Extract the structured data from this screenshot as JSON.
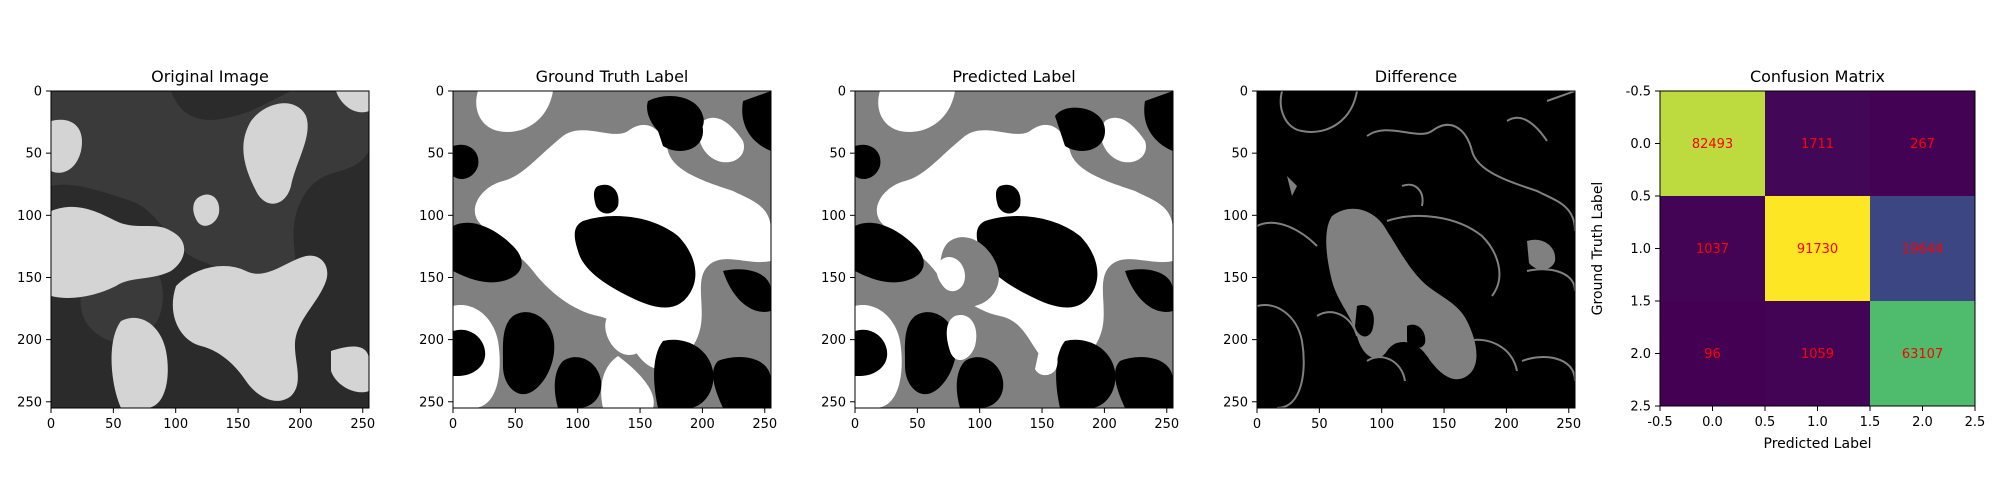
{
  "chart_data": [
    {
      "type": "image",
      "title": "Original Image",
      "xlim": [
        0,
        255
      ],
      "ylim": [
        255,
        0
      ],
      "xticks": [
        0,
        50,
        100,
        150,
        200,
        250
      ],
      "yticks": [
        0,
        50,
        100,
        150,
        200,
        250
      ],
      "colormap": "grayscale",
      "colors": {
        "dark": "#2a2a2a",
        "mid": "#3c3c3c",
        "light": "#d4d4d4"
      }
    },
    {
      "type": "image",
      "title": "Ground Truth Label",
      "xlim": [
        0,
        255
      ],
      "ylim": [
        255,
        0
      ],
      "xticks": [
        0,
        50,
        100,
        150,
        200,
        250
      ],
      "yticks": [
        0,
        50,
        100,
        150,
        200,
        250
      ],
      "classes": [
        0,
        1,
        2
      ],
      "colors": {
        "class0": "#808080",
        "class1": "#ffffff",
        "class2": "#000000"
      }
    },
    {
      "type": "image",
      "title": "Predicted Label",
      "xlim": [
        0,
        255
      ],
      "ylim": [
        255,
        0
      ],
      "xticks": [
        0,
        50,
        100,
        150,
        200,
        250
      ],
      "yticks": [
        0,
        50,
        100,
        150,
        200,
        250
      ],
      "classes": [
        0,
        1,
        2
      ],
      "colors": {
        "class0": "#808080",
        "class1": "#ffffff",
        "class2": "#000000"
      }
    },
    {
      "type": "image",
      "title": "Difference",
      "xlim": [
        0,
        255
      ],
      "ylim": [
        255,
        0
      ],
      "xticks": [
        0,
        50,
        100,
        150,
        200,
        250
      ],
      "yticks": [
        0,
        50,
        100,
        150,
        200,
        250
      ],
      "colors": {
        "background": "#000000",
        "difference": "#808080"
      }
    },
    {
      "type": "heatmap",
      "title": "Confusion Matrix",
      "xlabel": "Predicted Label",
      "ylabel": "Ground Truth Label",
      "xlim": [
        -0.5,
        2.5
      ],
      "ylim": [
        2.5,
        -0.5
      ],
      "xticks": [
        "-0.5",
        "0.0",
        "0.5",
        "1.0",
        "1.5",
        "2.0",
        "2.5"
      ],
      "yticks": [
        "-0.5",
        "0.0",
        "0.5",
        "1.0",
        "1.5",
        "2.0",
        "2.5"
      ],
      "matrix": [
        [
          82493,
          1711,
          267
        ],
        [
          1037,
          91730,
          19644
        ],
        [
          96,
          1059,
          63107
        ]
      ],
      "cell_labels": [
        [
          "82493",
          "1711",
          "267"
        ],
        [
          "1037",
          "91730",
          "19644"
        ],
        [
          "96",
          "1059",
          "63107"
        ]
      ],
      "colormap": "viridis",
      "text_color": "#ff0000"
    }
  ]
}
